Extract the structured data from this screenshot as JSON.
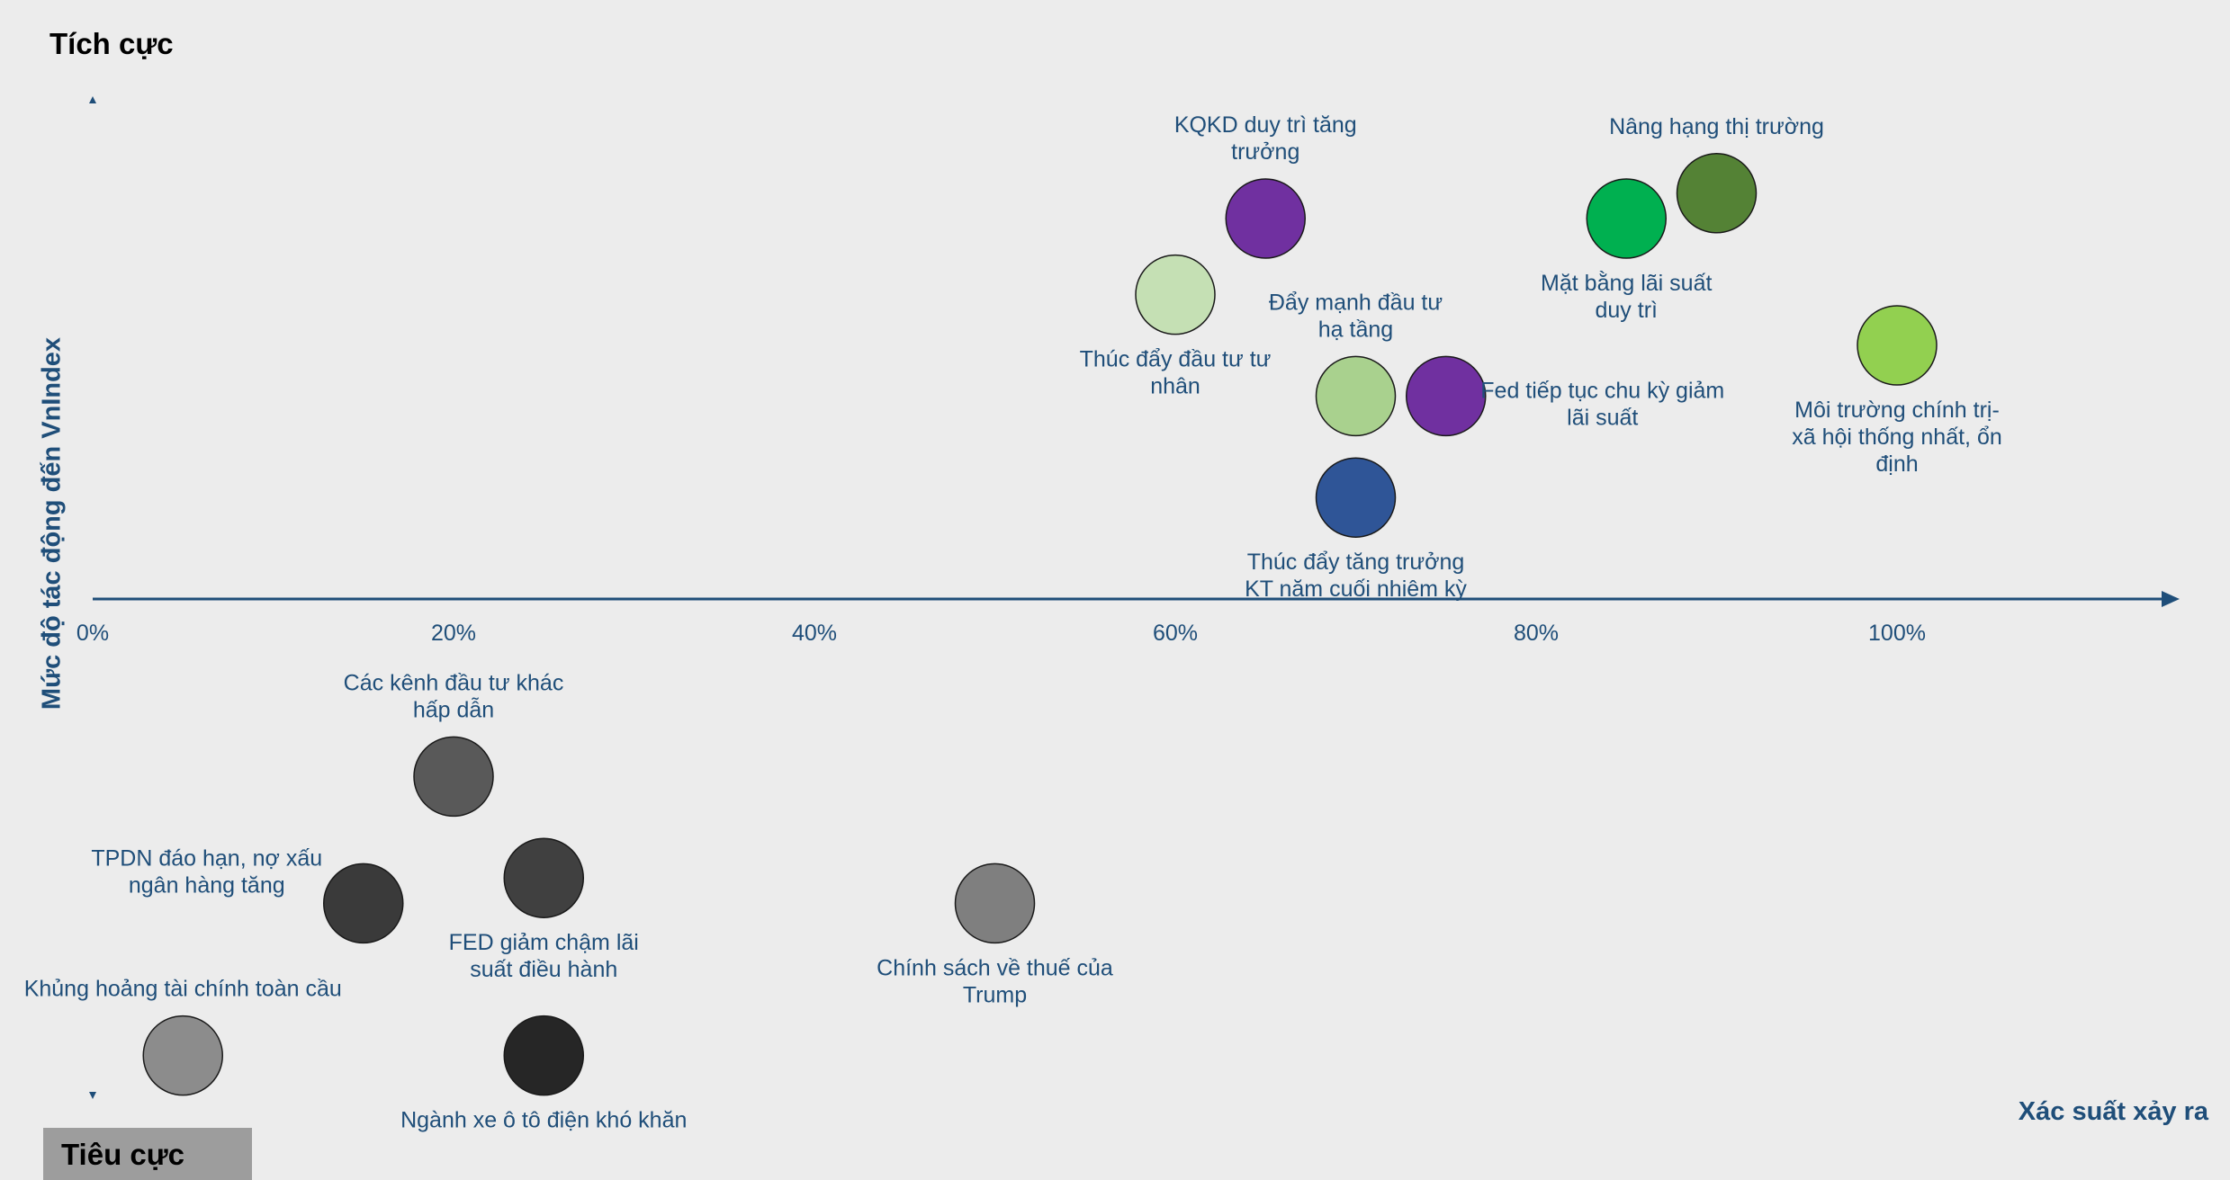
{
  "labels": {
    "top": "Tích cực",
    "bottom": "Tiêu cực",
    "ylabel": "Mức độ tác động đến VnIndex",
    "xlabel": "Xác suất xảy ra"
  },
  "chart_data": {
    "type": "scatter",
    "title": "",
    "xlabel": "Xác suất xảy ra",
    "ylabel": "Mức độ tác động đến VnIndex",
    "xlim": [
      0,
      1.1
    ],
    "ylim": [
      -4,
      4
    ],
    "x_ticks": [
      "0%",
      "20%",
      "40%",
      "60%",
      "80%",
      "100%"
    ],
    "x_tick_values": [
      0,
      0.2,
      0.4,
      0.6,
      0.8,
      1.0
    ],
    "grid": false,
    "legend": "none",
    "points": [
      {
        "label": "KQKD duy trì tăng\ntrưởng",
        "x": 0.65,
        "y": 3.0,
        "color": "#7030a0",
        "label_pos": "above"
      },
      {
        "label": "Nâng hạng thị trường",
        "x": 0.9,
        "y": 3.2,
        "color": "#548235",
        "label_pos": "above"
      },
      {
        "label": "Mặt bằng lãi suất\nduy trì",
        "x": 0.85,
        "y": 3.0,
        "color": "#00b050",
        "label_pos": "below"
      },
      {
        "label": "Thúc đẩy đầu tư tư\nnhân",
        "x": 0.6,
        "y": 2.4,
        "color": "#c5e0b4",
        "label_pos": "below"
      },
      {
        "label": "Đẩy mạnh đầu tư\nhạ tầng",
        "x": 0.7,
        "y": 1.6,
        "color": "#a9d18e",
        "label_pos": "above"
      },
      {
        "label": "Fed tiếp tục chu kỳ giảm\nlãi suất",
        "x": 0.75,
        "y": 1.6,
        "color": "#7030a0",
        "label_pos": "right"
      },
      {
        "label": "Môi trường chính trị-\nxã hội  thống nhất, ổn\nđịnh",
        "x": 1.0,
        "y": 2.0,
        "color": "#92d050",
        "label_pos": "below"
      },
      {
        "label": "Thúc đẩy tăng trưởng\nKT năm cuối nhiệm kỳ",
        "x": 0.7,
        "y": 0.8,
        "color": "#2f5597",
        "label_pos": "below"
      },
      {
        "label": "Các kênh đầu tư khác\nhấp dẫn",
        "x": 0.2,
        "y": -1.4,
        "color": "#595959",
        "label_pos": "above"
      },
      {
        "label": "TPDN đáo hạn, nợ xấu\nngân hàng tăng",
        "x": 0.15,
        "y": -2.4,
        "color": "#3a3a3a",
        "label_pos": "left"
      },
      {
        "label": "FED giảm chậm lãi\nsuất điều hành",
        "x": 0.25,
        "y": -2.2,
        "color": "#404040",
        "label_pos": "below"
      },
      {
        "label": "Chính sách về thuế của\nTrump",
        "x": 0.5,
        "y": -2.4,
        "color": "#7f7f7f",
        "label_pos": "below"
      },
      {
        "label": "Khủng hoảng tài chính toàn cầu",
        "x": 0.05,
        "y": -3.6,
        "color": "#8c8c8c",
        "label_pos": "above"
      },
      {
        "label": "Ngành xe ô tô điện khó khăn",
        "x": 0.25,
        "y": -3.6,
        "color": "#262626",
        "label_pos": "below"
      }
    ]
  },
  "colors": {
    "axis": "#1f4e79",
    "label_text": "#1f4e79",
    "background": "#ececec",
    "bubble_stroke": "#1a1a1a"
  }
}
